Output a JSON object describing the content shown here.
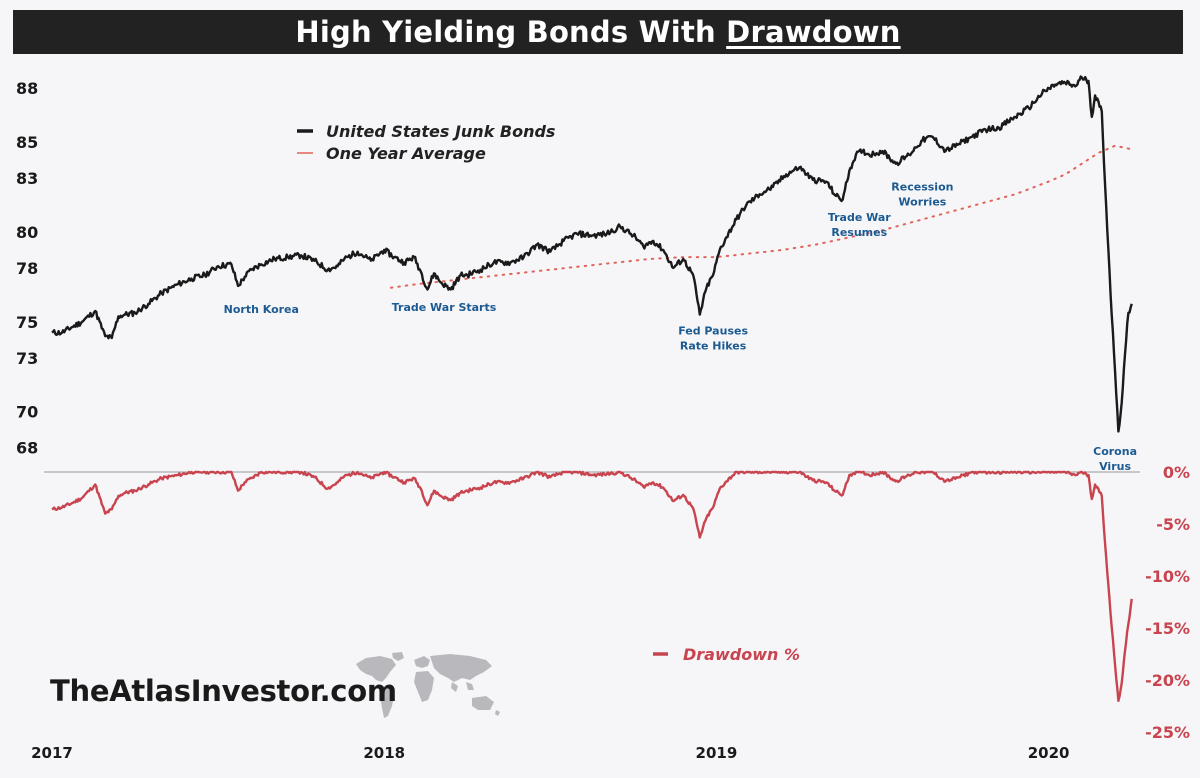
{
  "title": {
    "prefix": "High Yielding Bonds With ",
    "underlined": "Drawdown"
  },
  "brand": "TheAtlasInvestor.com",
  "colors": {
    "junk_bonds": "#1a1a1a",
    "one_year_average": "#e0645a",
    "drawdown": "#c8444f",
    "annotation": "#1c5a91",
    "title_bar": "#222222",
    "background": "#f6f6f8"
  },
  "icons": [
    "world-map-icon"
  ],
  "chart_data": [
    {
      "type": "line",
      "title": "High Yielding Bonds With Drawdown",
      "x_ticks": [
        "2017",
        "2018",
        "2019",
        "2020"
      ],
      "x_tick_values": [
        2017.0,
        2018.0,
        2019.0,
        2020.0
      ],
      "xlim": [
        2017.0,
        2020.26
      ],
      "y_ticks": [
        68,
        70,
        73,
        75,
        78,
        80,
        83,
        85,
        88
      ],
      "ylim": [
        67.2,
        88.9
      ],
      "legend_placement": "top-left",
      "grid": false,
      "series": [
        {
          "name": "United States Junk Bonds",
          "x": [
            2017.0,
            2017.03,
            2017.06,
            2017.09,
            2017.13,
            2017.16,
            2017.18,
            2017.2,
            2017.22,
            2017.25,
            2017.29,
            2017.33,
            2017.38,
            2017.42,
            2017.46,
            2017.5,
            2017.54,
            2017.56,
            2017.58,
            2017.6,
            2017.63,
            2017.67,
            2017.71,
            2017.75,
            2017.79,
            2017.83,
            2017.86,
            2017.88,
            2017.92,
            2017.96,
            2018.0,
            2018.03,
            2018.06,
            2018.09,
            2018.11,
            2018.13,
            2018.15,
            2018.17,
            2018.2,
            2018.23,
            2018.25,
            2018.29,
            2018.33,
            2018.38,
            2018.42,
            2018.46,
            2018.5,
            2018.54,
            2018.58,
            2018.63,
            2018.67,
            2018.71,
            2018.75,
            2018.78,
            2018.81,
            2018.84,
            2018.87,
            2018.9,
            2018.93,
            2018.95,
            2018.97,
            2018.99,
            2019.01,
            2019.03,
            2019.06,
            2019.09,
            2019.13,
            2019.17,
            2019.21,
            2019.25,
            2019.29,
            2019.33,
            2019.36,
            2019.38,
            2019.4,
            2019.42,
            2019.44,
            2019.46,
            2019.5,
            2019.54,
            2019.58,
            2019.6,
            2019.62,
            2019.65,
            2019.69,
            2019.73,
            2019.77,
            2019.81,
            2019.85,
            2019.9,
            2019.94,
            2019.98,
            2020.02,
            2020.05,
            2020.08,
            2020.1,
            2020.12,
            2020.13,
            2020.14,
            2020.16,
            2020.17,
            2020.18,
            2020.19,
            2020.2,
            2020.21,
            2020.22,
            2020.23,
            2020.24,
            2020.25
          ],
          "y": [
            74.4,
            74.4,
            74.7,
            75.0,
            75.6,
            74.2,
            74.1,
            75.3,
            75.4,
            75.5,
            76.0,
            76.6,
            77.1,
            77.4,
            77.6,
            78.1,
            78.2,
            77.0,
            77.5,
            77.9,
            78.2,
            78.5,
            78.6,
            78.7,
            78.4,
            77.9,
            78.1,
            78.5,
            78.9,
            78.4,
            79.0,
            78.6,
            78.3,
            78.6,
            77.8,
            76.8,
            77.7,
            77.2,
            76.8,
            77.6,
            77.6,
            77.9,
            78.3,
            78.3,
            78.6,
            79.3,
            78.9,
            79.5,
            79.9,
            79.8,
            79.9,
            80.3,
            79.8,
            79.2,
            79.5,
            79.0,
            78.0,
            78.5,
            77.6,
            75.4,
            76.9,
            77.6,
            79.0,
            79.7,
            80.7,
            81.5,
            82.1,
            82.5,
            83.2,
            83.6,
            82.9,
            82.8,
            82.0,
            81.8,
            83.4,
            84.3,
            84.5,
            84.3,
            84.5,
            83.8,
            84.3,
            84.7,
            85.1,
            85.3,
            84.5,
            84.9,
            85.3,
            85.7,
            85.8,
            86.4,
            86.9,
            87.7,
            88.2,
            88.3,
            88.1,
            88.6,
            88.4,
            86.4,
            87.6,
            86.7,
            82.6,
            79.0,
            75.4,
            72.2,
            68.9,
            70.5,
            73.2,
            75.5,
            76.0
          ]
        },
        {
          "name": "One Year Average",
          "x": [
            2018.02,
            2018.1,
            2018.2,
            2018.3,
            2018.4,
            2018.5,
            2018.6,
            2018.7,
            2018.8,
            2018.9,
            2019.0,
            2019.1,
            2019.2,
            2019.3,
            2019.4,
            2019.5,
            2019.6,
            2019.7,
            2019.8,
            2019.9,
            2020.0,
            2020.05,
            2020.1,
            2020.15,
            2020.2,
            2020.25
          ],
          "y": [
            76.9,
            77.1,
            77.3,
            77.5,
            77.7,
            77.9,
            78.1,
            78.3,
            78.5,
            78.6,
            78.6,
            78.8,
            79.0,
            79.3,
            79.7,
            80.1,
            80.6,
            81.1,
            81.6,
            82.1,
            82.8,
            83.2,
            83.8,
            84.4,
            84.8,
            84.6
          ]
        }
      ]
    },
    {
      "type": "area",
      "x_ticks": [
        "2017",
        "2018",
        "2019",
        "2020"
      ],
      "xlim": [
        2017.0,
        2020.26
      ],
      "y_ticks": [
        "0%",
        "-5%",
        "-10%",
        "-15%",
        "-20%",
        "-25%"
      ],
      "y_tick_values": [
        0,
        -5,
        -10,
        -15,
        -20,
        -25
      ],
      "ylim": [
        -25,
        0
      ],
      "legend_placement": "bottom-center",
      "series": [
        {
          "name": "Drawdown %",
          "x": [
            2017.0,
            2017.03,
            2017.06,
            2017.09,
            2017.13,
            2017.16,
            2017.18,
            2017.2,
            2017.22,
            2017.25,
            2017.29,
            2017.33,
            2017.38,
            2017.42,
            2017.46,
            2017.5,
            2017.54,
            2017.56,
            2017.58,
            2017.6,
            2017.63,
            2017.67,
            2017.71,
            2017.75,
            2017.79,
            2017.83,
            2017.86,
            2017.88,
            2017.92,
            2017.96,
            2018.0,
            2018.03,
            2018.06,
            2018.09,
            2018.11,
            2018.13,
            2018.15,
            2018.17,
            2018.2,
            2018.23,
            2018.25,
            2018.29,
            2018.33,
            2018.38,
            2018.42,
            2018.46,
            2018.5,
            2018.54,
            2018.58,
            2018.63,
            2018.67,
            2018.71,
            2018.75,
            2018.78,
            2018.81,
            2018.84,
            2018.87,
            2018.9,
            2018.93,
            2018.95,
            2018.97,
            2018.99,
            2019.01,
            2019.03,
            2019.06,
            2019.09,
            2019.13,
            2019.17,
            2019.21,
            2019.25,
            2019.29,
            2019.33,
            2019.36,
            2019.38,
            2019.4,
            2019.42,
            2019.44,
            2019.46,
            2019.5,
            2019.54,
            2019.58,
            2019.6,
            2019.62,
            2019.65,
            2019.69,
            2019.73,
            2019.77,
            2019.81,
            2019.85,
            2019.9,
            2019.94,
            2019.98,
            2020.02,
            2020.05,
            2020.08,
            2020.1,
            2020.12,
            2020.13,
            2020.14,
            2020.16,
            2020.17,
            2020.18,
            2020.19,
            2020.2,
            2020.21,
            2020.22,
            2020.23,
            2020.24,
            2020.25
          ],
          "y": [
            -3.6,
            -3.4,
            -3.0,
            -2.5,
            -1.2,
            -4.0,
            -3.6,
            -2.3,
            -2.0,
            -1.8,
            -1.2,
            -0.6,
            -0.3,
            0.0,
            0.0,
            0.0,
            0.0,
            -1.8,
            -1.0,
            -0.6,
            0.0,
            0.0,
            0.0,
            0.0,
            -0.5,
            -1.6,
            -1.0,
            -0.4,
            0.0,
            -0.6,
            0.0,
            -0.5,
            -1.0,
            -0.6,
            -1.6,
            -3.2,
            -1.8,
            -2.3,
            -2.7,
            -2.0,
            -1.8,
            -1.5,
            -1.0,
            -1.0,
            -0.6,
            0.0,
            -0.5,
            0.0,
            0.0,
            -0.3,
            -0.2,
            0.0,
            -0.7,
            -1.4,
            -1.0,
            -1.5,
            -2.8,
            -2.2,
            -3.5,
            -6.3,
            -4.4,
            -3.4,
            -1.6,
            -0.9,
            0.0,
            0.0,
            0.0,
            0.0,
            0.0,
            0.0,
            -0.8,
            -1.0,
            -1.9,
            -2.2,
            -0.3,
            0.0,
            0.0,
            -0.3,
            0.0,
            -0.9,
            -0.3,
            0.0,
            0.0,
            0.0,
            -0.9,
            -0.5,
            0.0,
            0.0,
            0.0,
            0.0,
            0.0,
            0.0,
            0.0,
            0.0,
            -0.3,
            0.0,
            -0.3,
            -2.6,
            -1.2,
            -2.3,
            -6.9,
            -10.9,
            -14.9,
            -18.6,
            -22.0,
            -20.3,
            -17.2,
            -14.6,
            -12.2
          ]
        }
      ]
    }
  ],
  "annotations": [
    {
      "lines": [
        "North Korea"
      ],
      "x": 2017.63,
      "y": 75.5
    },
    {
      "lines": [
        "Trade War Starts"
      ],
      "x": 2018.18,
      "y": 75.6
    },
    {
      "lines": [
        "Fed Pauses",
        "Rate Hikes"
      ],
      "x": 2018.99,
      "y": 74.3
    },
    {
      "lines": [
        "Trade War",
        "Resumes"
      ],
      "x": 2019.43,
      "y": 80.6
    },
    {
      "lines": [
        "Recession",
        "Worries"
      ],
      "x": 2019.62,
      "y": 82.3
    },
    {
      "lines": [
        "Corona",
        "Virus"
      ],
      "x": 2020.2,
      "y": 67.6
    }
  ]
}
